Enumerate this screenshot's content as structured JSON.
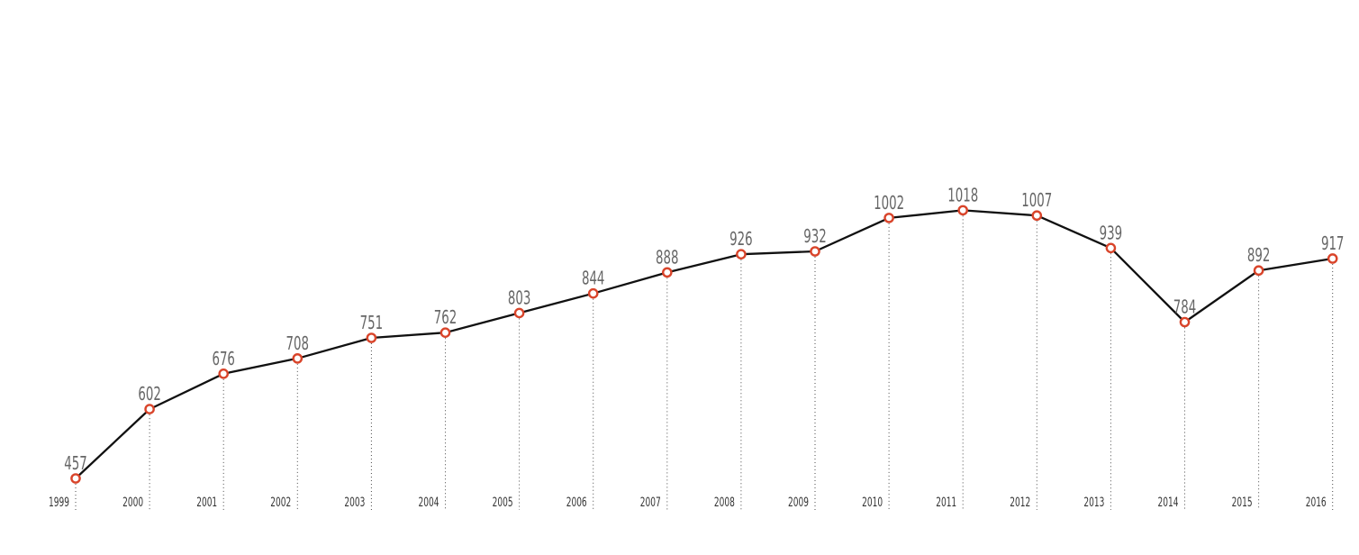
{
  "chart_data": {
    "type": "line",
    "title": "",
    "xlabel": "",
    "ylabel": "",
    "x": [
      "1999",
      "2000",
      "2001",
      "2002",
      "2003",
      "2004",
      "2005",
      "2006",
      "2007",
      "2008",
      "2009",
      "2010",
      "2011",
      "2012",
      "2013",
      "2014",
      "2015",
      "2016"
    ],
    "series": [
      {
        "values": [
          457,
          602,
          676,
          708,
          751,
          762,
          803,
          844,
          888,
          926,
          932,
          1002,
          1018,
          1007,
          939,
          784,
          892,
          917
        ]
      }
    ],
    "data_labels": true,
    "grid": false,
    "legend": "none",
    "drop_lines": "dotted"
  },
  "colors": {
    "line": "#111111",
    "marker_stroke": "#d9442a",
    "marker_fill": "#ffffff",
    "value_label": "#666666",
    "year_label": "#333333"
  }
}
